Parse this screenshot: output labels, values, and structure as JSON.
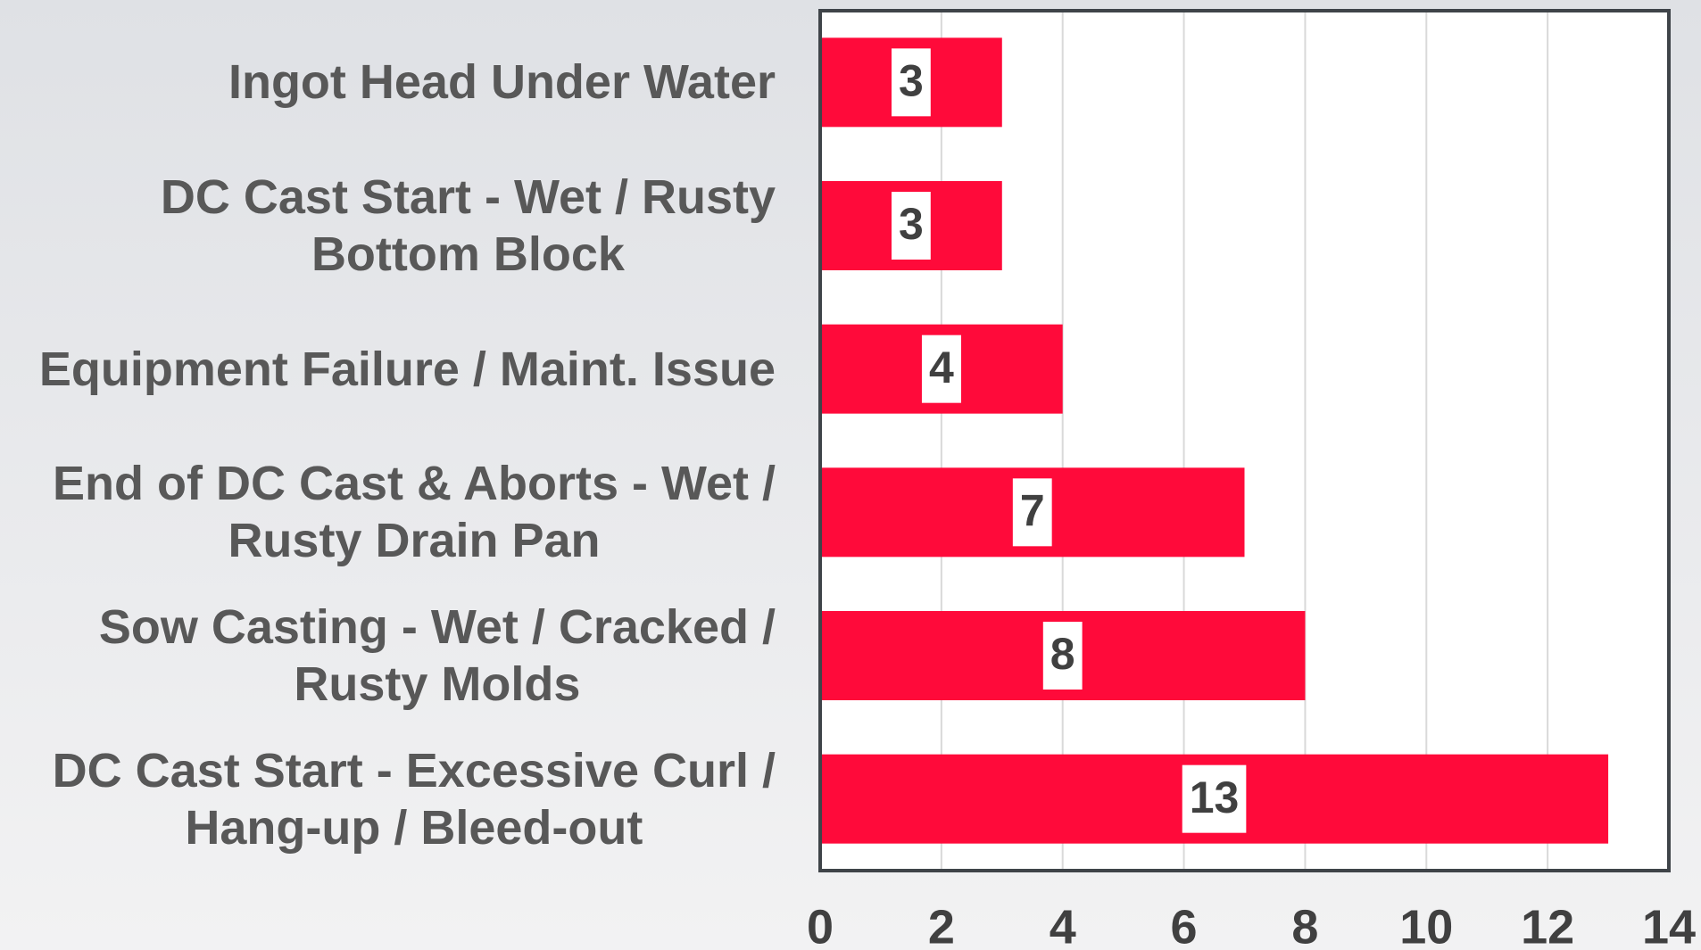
{
  "chart_data": {
    "type": "barh",
    "categories": [
      "Ingot Head Under Water",
      "DC Cast Start - Wet / Rusty\nBottom Block",
      "Equipment Failure / Maint. Issue",
      "End of DC Cast & Aborts - Wet /\nRusty Drain Pan",
      "Sow Casting - Wet / Cracked /\nRusty Molds",
      "DC Cast Start - Excessive Curl /\nHang-up / Bleed-out"
    ],
    "values": [
      3,
      3,
      4,
      7,
      8,
      13
    ],
    "color": "#ff0a3a",
    "xlim": [
      0,
      14
    ],
    "xticks": [
      0,
      2,
      4,
      6,
      8,
      10,
      12,
      14
    ],
    "grid": true
  }
}
